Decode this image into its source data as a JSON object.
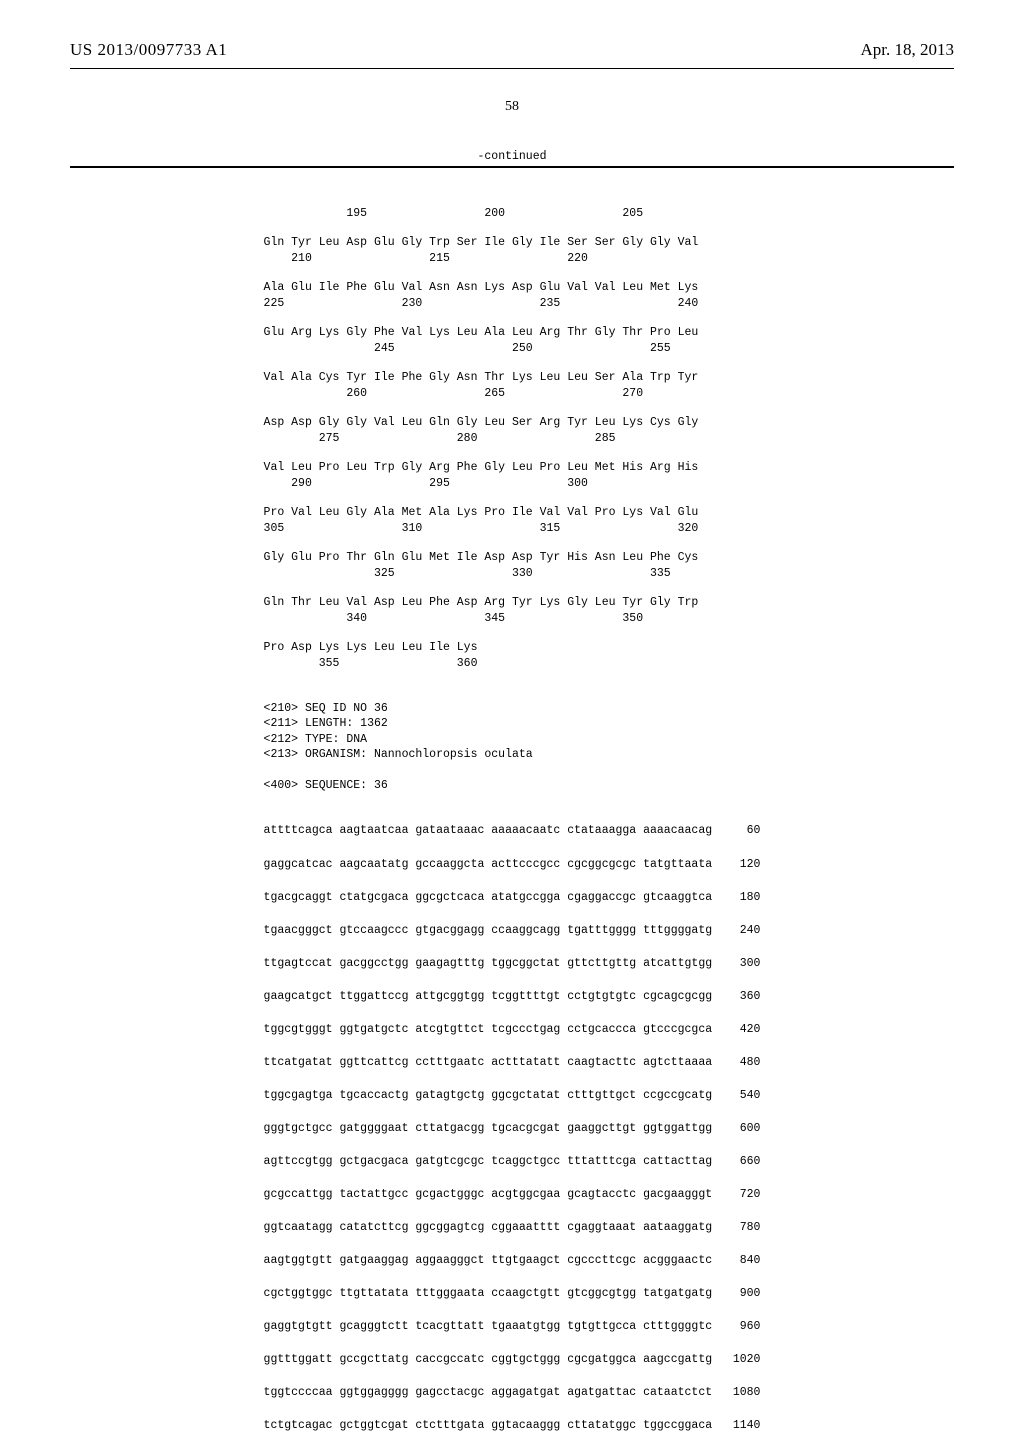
{
  "header": {
    "pub_number": "US 2013/0097733 A1",
    "pub_date": "Apr. 18, 2013",
    "page_number": "58",
    "continued_label": "-continued"
  },
  "protein_blocks": [
    {
      "seq": "            195                 200                 205",
      "pos": ""
    },
    {
      "seq": "Gln Tyr Leu Asp Glu Gly Trp Ser Ile Gly Ile Ser Ser Gly Gly Val",
      "pos": "    210                 215                 220"
    },
    {
      "seq": "Ala Glu Ile Phe Glu Val Asn Asn Lys Asp Glu Val Val Leu Met Lys",
      "pos": "225                 230                 235                 240"
    },
    {
      "seq": "Glu Arg Lys Gly Phe Val Lys Leu Ala Leu Arg Thr Gly Thr Pro Leu",
      "pos": "                245                 250                 255"
    },
    {
      "seq": "Val Ala Cys Tyr Ile Phe Gly Asn Thr Lys Leu Leu Ser Ala Trp Tyr",
      "pos": "            260                 265                 270"
    },
    {
      "seq": "Asp Asp Gly Gly Val Leu Gln Gly Leu Ser Arg Tyr Leu Lys Cys Gly",
      "pos": "        275                 280                 285"
    },
    {
      "seq": "Val Leu Pro Leu Trp Gly Arg Phe Gly Leu Pro Leu Met His Arg His",
      "pos": "    290                 295                 300"
    },
    {
      "seq": "Pro Val Leu Gly Ala Met Ala Lys Pro Ile Val Val Pro Lys Val Glu",
      "pos": "305                 310                 315                 320"
    },
    {
      "seq": "Gly Glu Pro Thr Gln Glu Met Ile Asp Asp Tyr His Asn Leu Phe Cys",
      "pos": "                325                 330                 335"
    },
    {
      "seq": "Gln Thr Leu Val Asp Leu Phe Asp Arg Tyr Lys Gly Leu Tyr Gly Trp",
      "pos": "            340                 345                 350"
    },
    {
      "seq": "Pro Asp Lys Lys Leu Leu Ile Lys",
      "pos": "        355                 360"
    }
  ],
  "meta": {
    "seq_id": "<210> SEQ ID NO 36",
    "length": "<211> LENGTH: 1362",
    "type": "<212> TYPE: DNA",
    "organism": "<213> ORGANISM: Nannochloropsis oculata",
    "sequence": "<400> SEQUENCE: 36"
  },
  "dna_rows": [
    {
      "seq": "attttcagca aagtaatcaa gataataaac aaaaacaatc ctataaagga aaaacaacag",
      "n": "60"
    },
    {
      "seq": "gaggcatcac aagcaatatg gccaaggcta acttcccgcc cgcggcgcgc tatgttaata",
      "n": "120"
    },
    {
      "seq": "tgacgcaggt ctatgcgaca ggcgctcaca atatgccgga cgaggaccgc gtcaaggtca",
      "n": "180"
    },
    {
      "seq": "tgaacgggct gtccaagccc gtgacggagg ccaaggcagg tgatttgggg tttggggatg",
      "n": "240"
    },
    {
      "seq": "ttgagtccat gacggcctgg gaagagtttg tggcggctat gttcttgttg atcattgtgg",
      "n": "300"
    },
    {
      "seq": "gaagcatgct ttggattccg attgcggtgg tcggttttgt cctgtgtgtc cgcagcgcgg",
      "n": "360"
    },
    {
      "seq": "tggcgtgggt ggtgatgctc atcgtgttct tcgccctgag cctgcaccca gtcccgcgca",
      "n": "420"
    },
    {
      "seq": "ttcatgatat ggttcattcg cctttgaatc actttatatt caagtacttc agtcttaaaa",
      "n": "480"
    },
    {
      "seq": "tggcgagtga tgcaccactg gatagtgctg ggcgctatat ctttgttgct ccgccgcatg",
      "n": "540"
    },
    {
      "seq": "gggtgctgcc gatggggaat cttatgacgg tgcacgcgat gaaggcttgt ggtggattgg",
      "n": "600"
    },
    {
      "seq": "agttccgtgg gctgacgaca gatgtcgcgc tcaggctgcc tttatttcga cattacttag",
      "n": "660"
    },
    {
      "seq": "gcgccattgg tactattgcc gcgactgggc acgtggcgaa gcagtacctc gacgaagggt",
      "n": "720"
    },
    {
      "seq": "ggtcaatagg catatcttcg ggcggagtcg cggaaatttt cgaggtaaat aataaggatg",
      "n": "780"
    },
    {
      "seq": "aagtggtgtt gatgaaggag aggaagggct ttgtgaagct cgcccttcgc acgggaactc",
      "n": "840"
    },
    {
      "seq": "cgctggtggc ttgttatata tttgggaata ccaagctgtt gtcggcgtgg tatgatgatg",
      "n": "900"
    },
    {
      "seq": "gaggtgtgtt gcagggtctt tcacgttatt tgaaatgtgg tgtgttgcca ctttggggtc",
      "n": "960"
    },
    {
      "seq": "ggtttggatt gccgcttatg caccgccatc cggtgctggg cgcgatggca aagccgattg",
      "n": "1020"
    },
    {
      "seq": "tggtccccaa ggtggagggg gagcctacgc aggagatgat agatgattac cataatctct",
      "n": "1080"
    },
    {
      "seq": "tctgtcagac gctggtcgat ctctttgata ggtacaaggg cttatatggc tggccggaca",
      "n": "1140"
    }
  ]
}
